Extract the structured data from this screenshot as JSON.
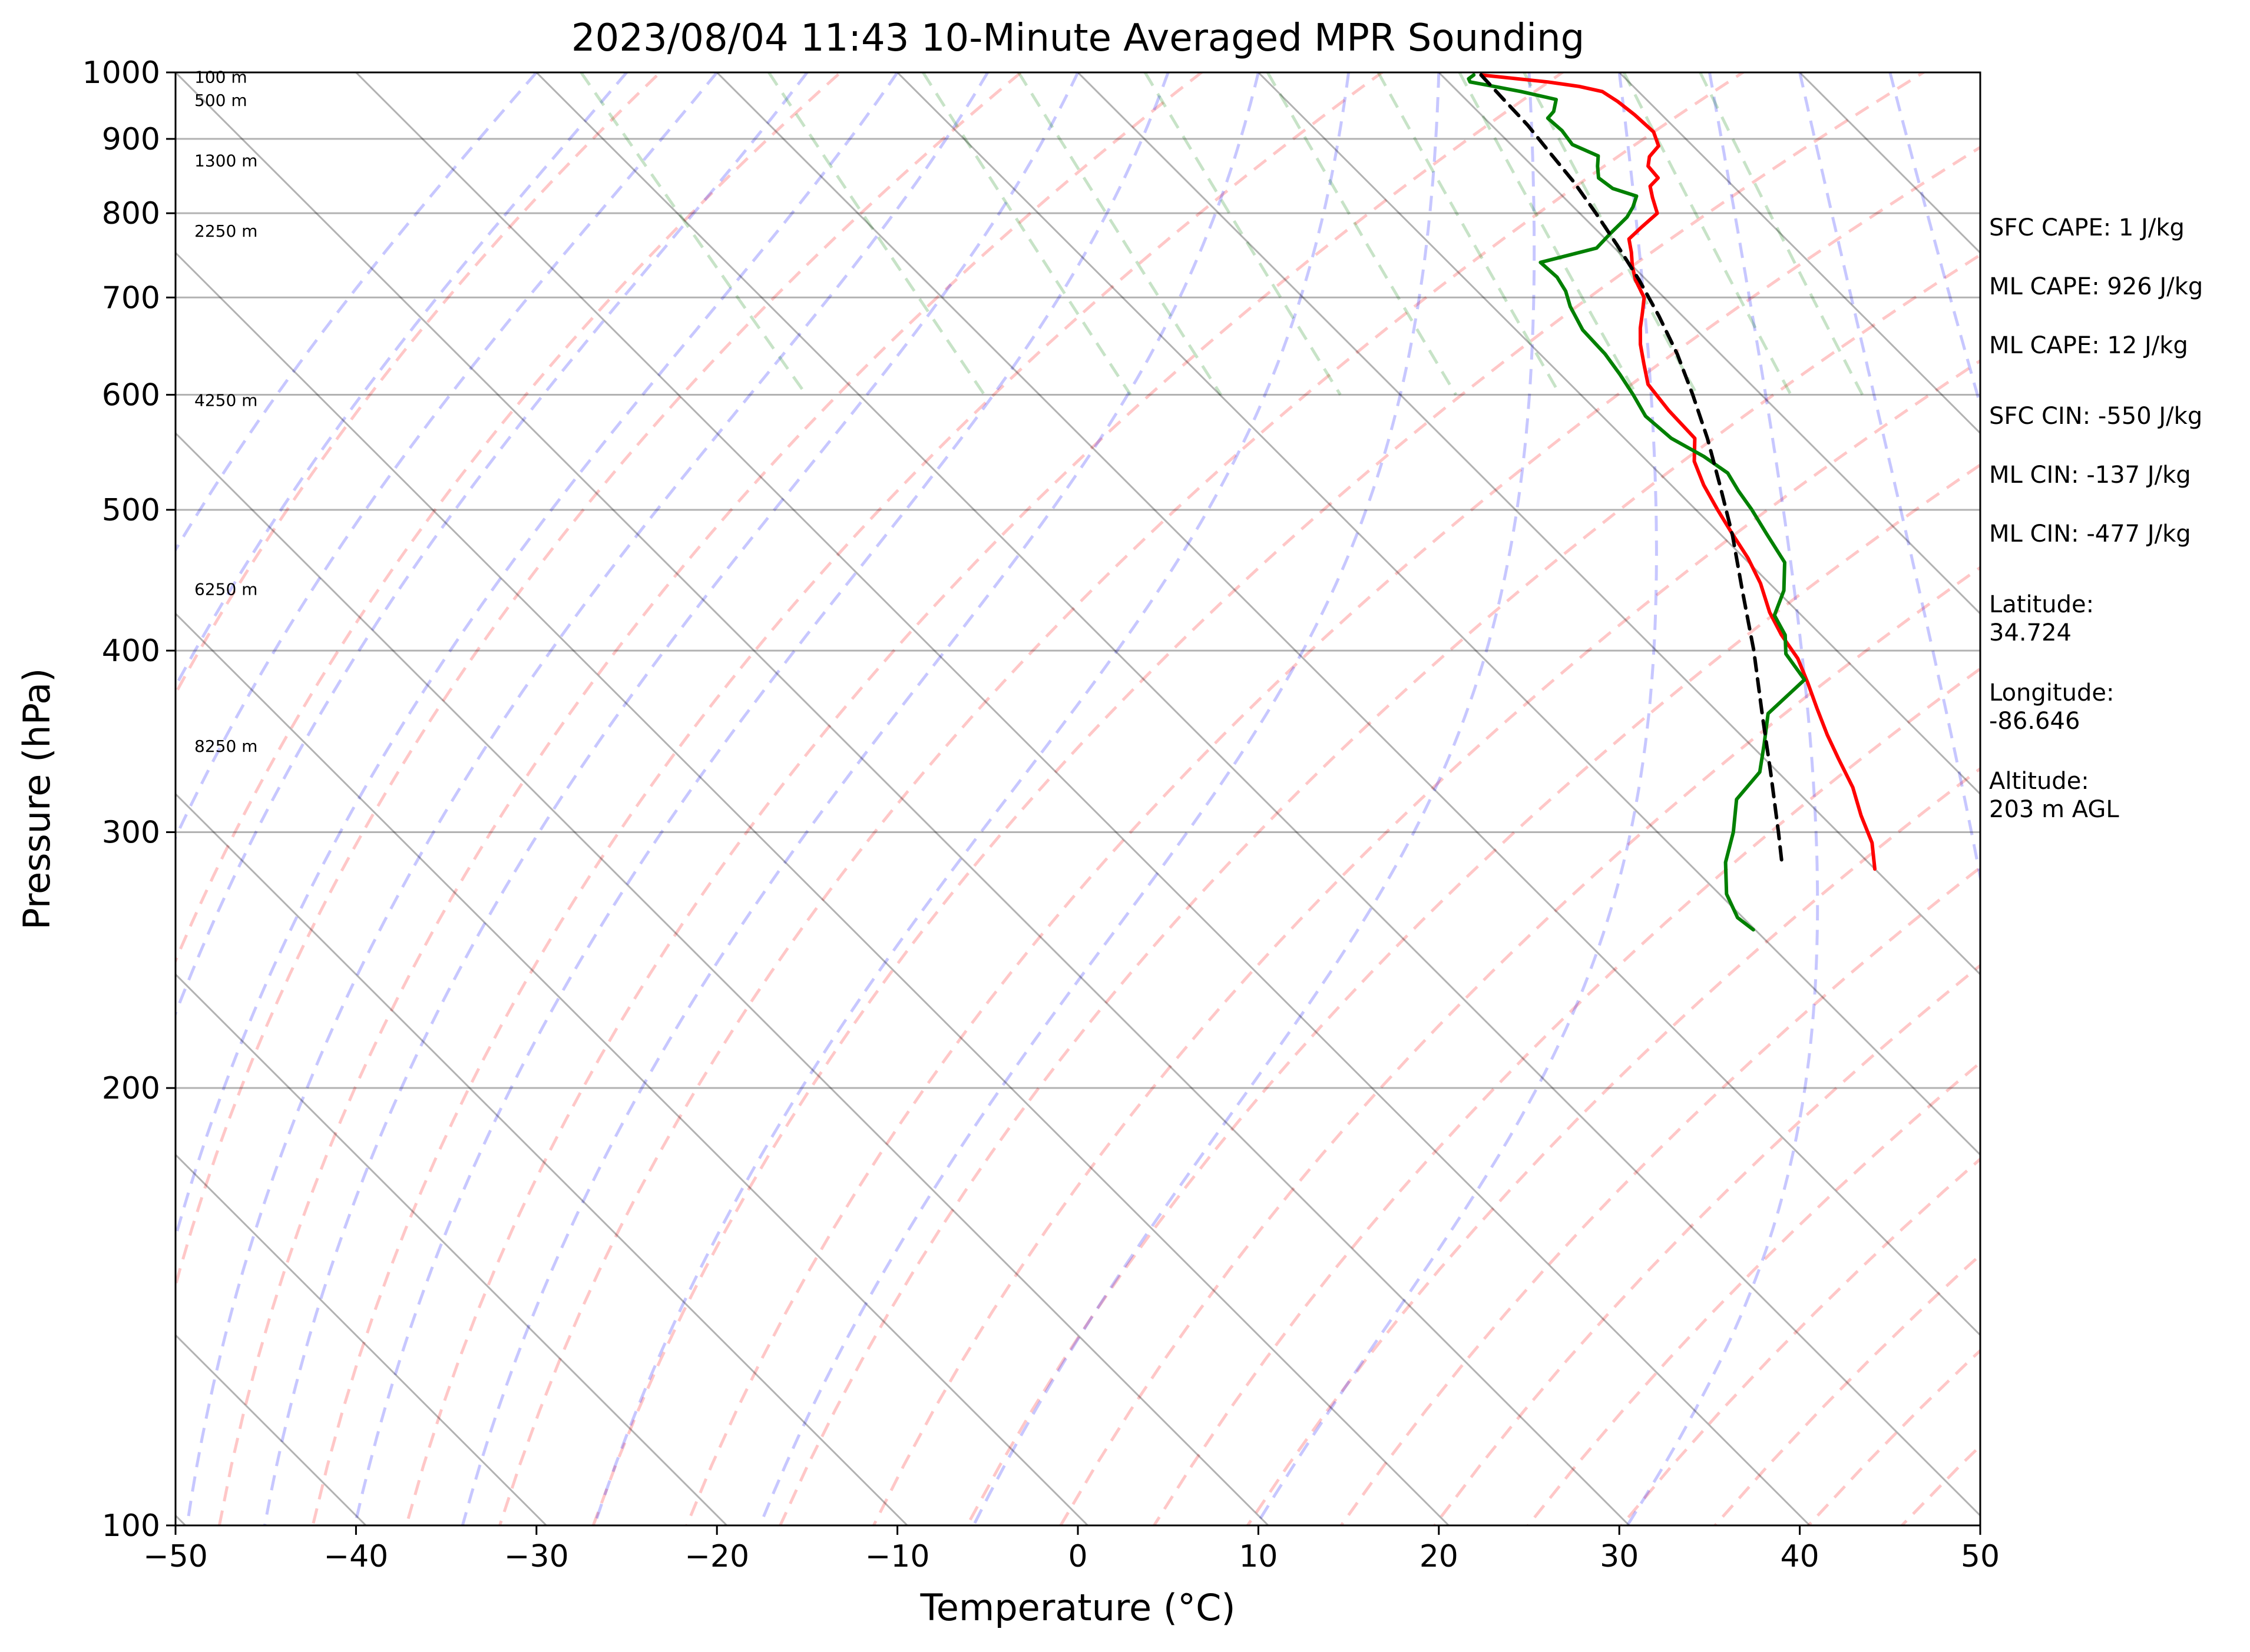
{
  "chart_data": {
    "type": "line",
    "title": "2023/08/04 11:43 10-Minute Averaged MPR Sounding",
    "xlabel": "Temperature (°C)",
    "ylabel": "Pressure (hPa)",
    "xlim": [
      -50,
      50
    ],
    "ylim": [
      1000,
      100
    ],
    "y_scale": "log",
    "x_ticks": [
      "−50",
      "−40",
      "−30",
      "−20",
      "−10",
      "0",
      "10",
      "20",
      "30",
      "40",
      "50"
    ],
    "y_ticks": [
      {
        "p": 100,
        "label": "100"
      },
      {
        "p": 200,
        "label": "200"
      },
      {
        "p": 300,
        "label": "300"
      },
      {
        "p": 400,
        "label": "400"
      },
      {
        "p": 500,
        "label": "500"
      },
      {
        "p": 600,
        "label": "600"
      },
      {
        "p": 700,
        "label": "700"
      },
      {
        "p": 800,
        "label": "800"
      },
      {
        "p": 900,
        "label": "900"
      },
      {
        "p": 1000,
        "label": "1000"
      }
    ],
    "grid": "horizontal",
    "height_labels": [
      {
        "p": 344,
        "text": "8250 m"
      },
      {
        "p": 441,
        "text": "6250 m"
      },
      {
        "p": 595,
        "text": "4250 m"
      },
      {
        "p": 778,
        "text": "2250 m"
      },
      {
        "p": 870,
        "text": "1300 m"
      },
      {
        "p": 957,
        "text": "500 m"
      },
      {
        "p": 993,
        "text": "100 m"
      }
    ],
    "series": [
      {
        "color": "#ff0000",
        "points": [
          [
            996,
            22.2
          ],
          [
            990,
            24.0
          ],
          [
            985,
            25.5
          ],
          [
            978,
            27.0
          ],
          [
            970,
            28.0
          ],
          [
            955,
            28.3
          ],
          [
            935,
            28.5
          ],
          [
            910,
            28.6
          ],
          [
            890,
            28.1
          ],
          [
            875,
            27.0
          ],
          [
            862,
            26.4
          ],
          [
            846,
            26.3
          ],
          [
            835,
            25.4
          ],
          [
            820,
            24.9
          ],
          [
            800,
            24.3
          ],
          [
            783,
            22.7
          ],
          [
            768,
            21.3
          ],
          [
            752,
            20.7
          ],
          [
            736,
            20.0
          ],
          [
            720,
            19.4
          ],
          [
            700,
            18.9
          ],
          [
            684,
            18.0
          ],
          [
            667,
            17.0
          ],
          [
            650,
            16.1
          ],
          [
            630,
            15.2
          ],
          [
            610,
            14.3
          ],
          [
            585,
            14.0
          ],
          [
            560,
            13.9
          ],
          [
            540,
            12.6
          ],
          [
            520,
            11.8
          ],
          [
            500,
            11.2
          ],
          [
            482,
            10.7
          ],
          [
            463,
            10.2
          ],
          [
            445,
            9.5
          ],
          [
            425,
            8.4
          ],
          [
            410,
            7.8
          ],
          [
            395,
            7.4
          ],
          [
            380,
            6.6
          ],
          [
            365,
            5.7
          ],
          [
            350,
            4.8
          ],
          [
            337,
            4.1
          ],
          [
            322,
            3.3
          ],
          [
            308,
            2.2
          ],
          [
            295,
            1.3
          ],
          [
            283,
            0.0
          ]
        ]
      },
      {
        "color": "#008000",
        "points": [
          [
            996,
            21.8
          ],
          [
            990,
            21.3
          ],
          [
            985,
            21.2
          ],
          [
            980,
            22.0
          ],
          [
            970,
            23.5
          ],
          [
            958,
            25.0
          ],
          [
            940,
            24.2
          ],
          [
            930,
            23.5
          ],
          [
            912,
            23.6
          ],
          [
            892,
            23.4
          ],
          [
            876,
            24.2
          ],
          [
            862,
            23.6
          ],
          [
            846,
            23.0
          ],
          [
            832,
            23.2
          ],
          [
            822,
            24.1
          ],
          [
            808,
            23.3
          ],
          [
            795,
            22.4
          ],
          [
            775,
            20.6
          ],
          [
            757,
            19.0
          ],
          [
            740,
            15.1
          ],
          [
            723,
            15.2
          ],
          [
            707,
            14.9
          ],
          [
            690,
            14.3
          ],
          [
            665,
            13.7
          ],
          [
            640,
            13.6
          ],
          [
            620,
            13.3
          ],
          [
            600,
            12.9
          ],
          [
            580,
            12.4
          ],
          [
            560,
            12.6
          ],
          [
            544,
            13.4
          ],
          [
            530,
            13.8
          ],
          [
            515,
            13.4
          ],
          [
            500,
            13.1
          ],
          [
            482,
            12.6
          ],
          [
            460,
            12.0
          ],
          [
            440,
            10.4
          ],
          [
            423,
            8.5
          ],
          [
            410,
            8.0
          ],
          [
            398,
            7.0
          ],
          [
            382,
            6.6
          ],
          [
            362,
            2.7
          ],
          [
            345,
            0.8
          ],
          [
            330,
            -1.0
          ],
          [
            316,
            -3.8
          ],
          [
            300,
            -5.8
          ],
          [
            286,
            -7.9
          ],
          [
            272,
            -9.6
          ],
          [
            262,
            -10.3
          ],
          [
            257,
            -10.1
          ]
        ]
      },
      {
        "color": "#000000",
        "dashed": true,
        "points": [
          [
            996,
            22.2
          ],
          [
            960,
            22.1
          ],
          [
            920,
            22.0
          ],
          [
            880,
            21.7
          ],
          [
            840,
            21.4
          ],
          [
            800,
            20.9
          ],
          [
            760,
            20.3
          ],
          [
            720,
            19.6
          ],
          [
            680,
            18.7
          ],
          [
            640,
            17.6
          ],
          [
            600,
            16.2
          ],
          [
            560,
            14.6
          ],
          [
            520,
            12.7
          ],
          [
            480,
            10.6
          ],
          [
            440,
            8.1
          ],
          [
            400,
            5.4
          ],
          [
            360,
            2.2
          ],
          [
            330,
            -0.4
          ],
          [
            300,
            -3.3
          ],
          [
            284,
            -5.0
          ]
        ]
      }
    ],
    "background_lines": [
      {
        "name": "isotherms",
        "color": "#000000",
        "style": "solid"
      },
      {
        "name": "dry-adiabats",
        "color": "#ff0000",
        "style": "dashed"
      },
      {
        "name": "moist-adiabats",
        "color": "#0000ff",
        "style": "dashed"
      },
      {
        "name": "mixing-ratio-lines",
        "color": "#008000",
        "style": "dashed"
      }
    ]
  },
  "info": [
    {
      "id": "sfc-cape",
      "lines": [
        "SFC CAPE: 1 J/kg"
      ]
    },
    {
      "id": "ml-cape-1",
      "lines": [
        "ML CAPE: 926 J/kg"
      ]
    },
    {
      "id": "ml-cape-2",
      "lines": [
        "ML CAPE: 12 J/kg"
      ]
    },
    {
      "id": "sfc-cin",
      "lines": [
        "SFC CIN: -550 J/kg"
      ]
    },
    {
      "id": "ml-cin-1",
      "lines": [
        "ML CIN: -137 J/kg"
      ]
    },
    {
      "id": "ml-cin-2",
      "lines": [
        "ML CIN: -477 J/kg"
      ]
    },
    {
      "id": "latitude",
      "lines": [
        "Latitude:",
        "34.724"
      ]
    },
    {
      "id": "longitude",
      "lines": [
        "Longitude:",
        "-86.646"
      ]
    },
    {
      "id": "altitude",
      "lines": [
        "Altitude:",
        "203 m AGL"
      ]
    }
  ]
}
